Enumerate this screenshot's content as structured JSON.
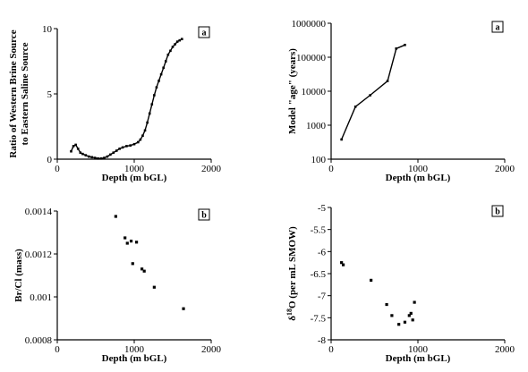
{
  "chart_data": [
    {
      "type": "line",
      "panel": "a",
      "xlabel": "Depth (m bGL)",
      "ylabel_lines": [
        "Ratio of Western Brine Source",
        "to Eastern Saline Source"
      ],
      "xlim": [
        0,
        2000
      ],
      "ylim": [
        0,
        10
      ],
      "xticks": [
        0,
        1000,
        2000
      ],
      "yticks": [
        0,
        5,
        10
      ],
      "markers": true,
      "series": [
        {
          "x": [
            180,
            210,
            240,
            270,
            300,
            330,
            370,
            410,
            450,
            490,
            530,
            570,
            610,
            650,
            690,
            730,
            770,
            810,
            850,
            900,
            950,
            1000,
            1050,
            1080,
            1110,
            1140,
            1170,
            1200,
            1230,
            1260,
            1290,
            1320,
            1350,
            1380,
            1410,
            1440,
            1470,
            1500,
            1530,
            1560,
            1590,
            1620
          ],
          "y": [
            0.6,
            1.0,
            1.1,
            0.8,
            0.5,
            0.4,
            0.3,
            0.2,
            0.15,
            0.1,
            0.05,
            0.05,
            0.1,
            0.2,
            0.35,
            0.5,
            0.65,
            0.8,
            0.9,
            1.0,
            1.05,
            1.15,
            1.3,
            1.5,
            1.8,
            2.2,
            2.8,
            3.5,
            4.2,
            4.9,
            5.5,
            6.0,
            6.5,
            7.0,
            7.5,
            8.0,
            8.3,
            8.6,
            8.8,
            9.0,
            9.1,
            9.2
          ]
        }
      ]
    },
    {
      "type": "line",
      "panel": "a",
      "xlabel": "Depth (m bGL)",
      "ylabel": "Model \"age\" (years)",
      "xlim": [
        0,
        2000
      ],
      "ylim": [
        100,
        1000000
      ],
      "yscale": "log",
      "xticks": [
        0,
        1000,
        2000
      ],
      "yticks": [
        100,
        1000,
        10000,
        100000,
        1000000
      ],
      "yticklabels": [
        "100",
        "1000",
        "10000",
        "100000",
        "1000000"
      ],
      "markers": true,
      "series": [
        {
          "x": [
            120,
            280,
            450,
            650,
            750,
            850
          ],
          "y": [
            380,
            3500,
            7600,
            20000,
            180000,
            230000
          ]
        }
      ]
    },
    {
      "type": "scatter",
      "panel": "b",
      "xlabel": "Depth (m bGL)",
      "ylabel": "Br/Cl (mass)",
      "xlim": [
        0,
        2000
      ],
      "ylim": [
        0.0008,
        0.0014
      ],
      "xticks": [
        0,
        1000,
        2000
      ],
      "yticks": [
        0.0008,
        0.001,
        0.0012,
        0.0014
      ],
      "yticklabels": [
        "0.0008",
        "0.001",
        "0.0012",
        "0.0014"
      ],
      "series": [
        {
          "x": [
            760,
            880,
            910,
            960,
            980,
            1030,
            1100,
            1130,
            1260,
            1640
          ],
          "y": [
            0.001375,
            0.001275,
            0.00125,
            0.00126,
            0.001155,
            0.001255,
            0.00113,
            0.00112,
            0.001045,
            0.000945
          ]
        }
      ]
    },
    {
      "type": "scatter",
      "panel": "b",
      "xlabel": "Depth (m bGL)",
      "ylabel_base": "δ",
      "ylabel_sup": "18",
      "ylabel_rest": "O (per mL SMOW)",
      "xlim": [
        0,
        2000
      ],
      "ylim": [
        -8,
        -5
      ],
      "xticks": [
        0,
        1000,
        2000
      ],
      "yticks": [
        -8,
        -7.5,
        -7,
        -6.5,
        -6,
        -5.5,
        -5
      ],
      "yticklabels": [
        "-8",
        "-7.5",
        "-7",
        "-6.5",
        "-6",
        "-5.5",
        "-5"
      ],
      "series": [
        {
          "x": [
            120,
            140,
            460,
            640,
            700,
            780,
            850,
            900,
            920,
            940,
            960
          ],
          "y": [
            -6.25,
            -6.3,
            -6.65,
            -7.2,
            -7.45,
            -7.65,
            -7.6,
            -7.45,
            -7.4,
            -7.55,
            -7.15
          ]
        }
      ]
    }
  ]
}
